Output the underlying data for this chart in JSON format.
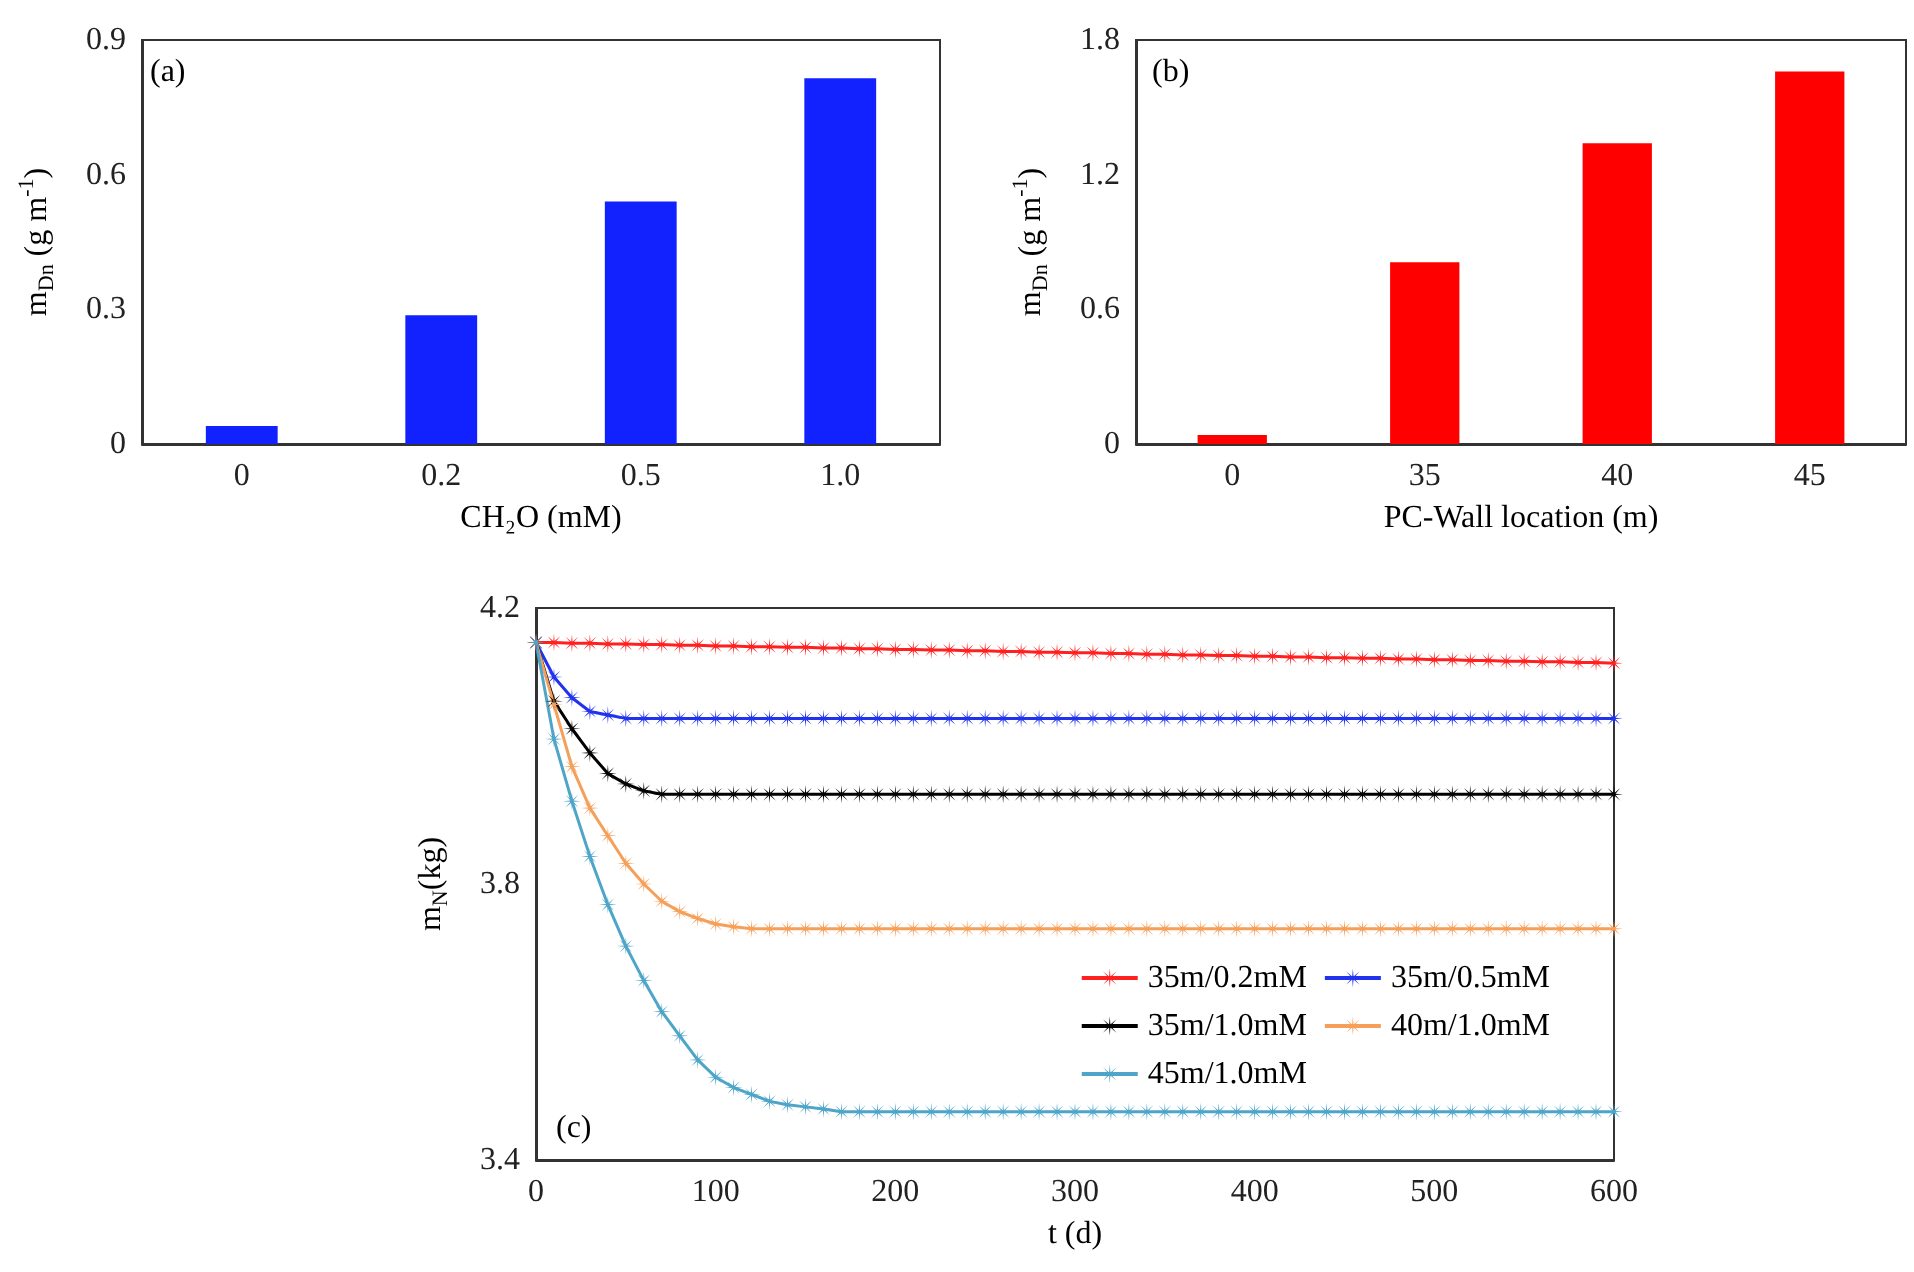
{
  "chart_data": [
    {
      "type": "bar",
      "annotations": [
        "(a)"
      ],
      "xlabel": "CH₂O (mM)",
      "ylabel": "m$_{Dn}$ (g m$^{-1}$)",
      "categories": [
        "0",
        "0.2",
        "0.5",
        "1.0"
      ],
      "values": [
        0.04,
        0.287,
        0.54,
        0.815
      ],
      "color": "#1122ff",
      "ylim": [
        0,
        0.9
      ],
      "yticks": [
        0,
        0.3,
        0.6,
        0.9
      ]
    },
    {
      "type": "bar",
      "annotations": [
        "(b)"
      ],
      "xlabel": "PC-Wall location (m)",
      "ylabel": "m$_{Dn}$ (g m$^{-1}$)",
      "categories": [
        "0",
        "35",
        "40",
        "45"
      ],
      "values": [
        0.04,
        0.81,
        1.34,
        1.66
      ],
      "color": "#ff0000",
      "ylim": [
        0,
        1.8
      ],
      "yticks": [
        0,
        0.6,
        1.2,
        1.8
      ]
    },
    {
      "type": "line",
      "annotations": [
        "(c)"
      ],
      "xlabel": "t (d)",
      "ylabel": "m$_{N}$(kg)",
      "legend": "bottom right",
      "marker": "star",
      "line_style": "solid",
      "xlim": [
        0,
        600
      ],
      "xticks": [
        0,
        100,
        200,
        300,
        400,
        500,
        600
      ],
      "ylim": [
        3.4,
        4.2
      ],
      "yticks": [
        3.4,
        3.8,
        4.2
      ],
      "x": [
        0,
        10,
        20,
        30,
        40,
        50,
        60,
        70,
        80,
        90,
        100,
        110,
        120,
        130,
        140,
        150,
        160,
        170,
        180,
        190,
        200,
        210,
        220,
        230,
        240,
        250,
        260,
        270,
        280,
        290,
        300,
        310,
        320,
        330,
        340,
        350,
        360,
        370,
        380,
        390,
        400,
        410,
        420,
        430,
        440,
        450,
        460,
        470,
        480,
        490,
        500,
        510,
        520,
        530,
        540,
        550,
        560,
        570,
        580,
        590,
        600
      ],
      "series": [
        {
          "name": "35m/0.2mM",
          "color": "#ff2020",
          "values": [
            4.15,
            4.15,
            4.149,
            4.149,
            4.148,
            4.148,
            4.147,
            4.147,
            4.146,
            4.146,
            4.145,
            4.145,
            4.144,
            4.144,
            4.143,
            4.143,
            4.142,
            4.142,
            4.141,
            4.141,
            4.14,
            4.14,
            4.139,
            4.139,
            4.138,
            4.138,
            4.137,
            4.137,
            4.136,
            4.136,
            4.135,
            4.135,
            4.134,
            4.134,
            4.133,
            4.133,
            4.132,
            4.132,
            4.131,
            4.131,
            4.13,
            4.13,
            4.129,
            4.129,
            4.128,
            4.128,
            4.127,
            4.127,
            4.126,
            4.126,
            4.125,
            4.125,
            4.124,
            4.124,
            4.123,
            4.123,
            4.122,
            4.122,
            4.121,
            4.121,
            4.12
          ]
        },
        {
          "name": "35m/0.5mM",
          "color": "#2233ee",
          "values": [
            4.15,
            4.1,
            4.07,
            4.05,
            4.045,
            4.04,
            4.04,
            4.04,
            4.04,
            4.04,
            4.04,
            4.04,
            4.04,
            4.04,
            4.04,
            4.04,
            4.04,
            4.04,
            4.04,
            4.04,
            4.04,
            4.04,
            4.04,
            4.04,
            4.04,
            4.04,
            4.04,
            4.04,
            4.04,
            4.04,
            4.04,
            4.04,
            4.04,
            4.04,
            4.04,
            4.04,
            4.04,
            4.04,
            4.04,
            4.04,
            4.04,
            4.04,
            4.04,
            4.04,
            4.04,
            4.04,
            4.04,
            4.04,
            4.04,
            4.04,
            4.04,
            4.04,
            4.04,
            4.04,
            4.04,
            4.04,
            4.04,
            4.04,
            4.04,
            4.04,
            4.04
          ]
        },
        {
          "name": "35m/1.0mM",
          "color": "#000000",
          "values": [
            4.15,
            4.065,
            4.025,
            3.99,
            3.96,
            3.945,
            3.935,
            3.93,
            3.93,
            3.93,
            3.93,
            3.93,
            3.93,
            3.93,
            3.93,
            3.93,
            3.93,
            3.93,
            3.93,
            3.93,
            3.93,
            3.93,
            3.93,
            3.93,
            3.93,
            3.93,
            3.93,
            3.93,
            3.93,
            3.93,
            3.93,
            3.93,
            3.93,
            3.93,
            3.93,
            3.93,
            3.93,
            3.93,
            3.93,
            3.93,
            3.93,
            3.93,
            3.93,
            3.93,
            3.93,
            3.93,
            3.93,
            3.93,
            3.93,
            3.93,
            3.93,
            3.93,
            3.93,
            3.93,
            3.93,
            3.93,
            3.93,
            3.93,
            3.93,
            3.93,
            3.93
          ]
        },
        {
          "name": "40m/1.0mM",
          "color": "#f5a05a",
          "values": [
            4.15,
            4.06,
            3.97,
            3.91,
            3.87,
            3.83,
            3.8,
            3.775,
            3.76,
            3.75,
            3.742,
            3.738,
            3.735,
            3.735,
            3.735,
            3.735,
            3.735,
            3.735,
            3.735,
            3.735,
            3.735,
            3.735,
            3.735,
            3.735,
            3.735,
            3.735,
            3.735,
            3.735,
            3.735,
            3.735,
            3.735,
            3.735,
            3.735,
            3.735,
            3.735,
            3.735,
            3.735,
            3.735,
            3.735,
            3.735,
            3.735,
            3.735,
            3.735,
            3.735,
            3.735,
            3.735,
            3.735,
            3.735,
            3.735,
            3.735,
            3.735,
            3.735,
            3.735,
            3.735,
            3.735,
            3.735,
            3.735,
            3.735,
            3.735,
            3.735,
            3.735
          ]
        },
        {
          "name": "45m/1.0mM",
          "color": "#4ea5c8",
          "values": [
            4.15,
            4.01,
            3.92,
            3.84,
            3.77,
            3.71,
            3.66,
            3.615,
            3.58,
            3.545,
            3.52,
            3.505,
            3.495,
            3.485,
            3.48,
            3.477,
            3.474,
            3.47,
            3.47,
            3.47,
            3.47,
            3.47,
            3.47,
            3.47,
            3.47,
            3.47,
            3.47,
            3.47,
            3.47,
            3.47,
            3.47,
            3.47,
            3.47,
            3.47,
            3.47,
            3.47,
            3.47,
            3.47,
            3.47,
            3.47,
            3.47,
            3.47,
            3.47,
            3.47,
            3.47,
            3.47,
            3.47,
            3.47,
            3.47,
            3.47,
            3.47,
            3.47,
            3.47,
            3.47,
            3.47,
            3.47,
            3.47,
            3.47,
            3.47,
            3.47,
            3.47
          ]
        }
      ]
    }
  ]
}
